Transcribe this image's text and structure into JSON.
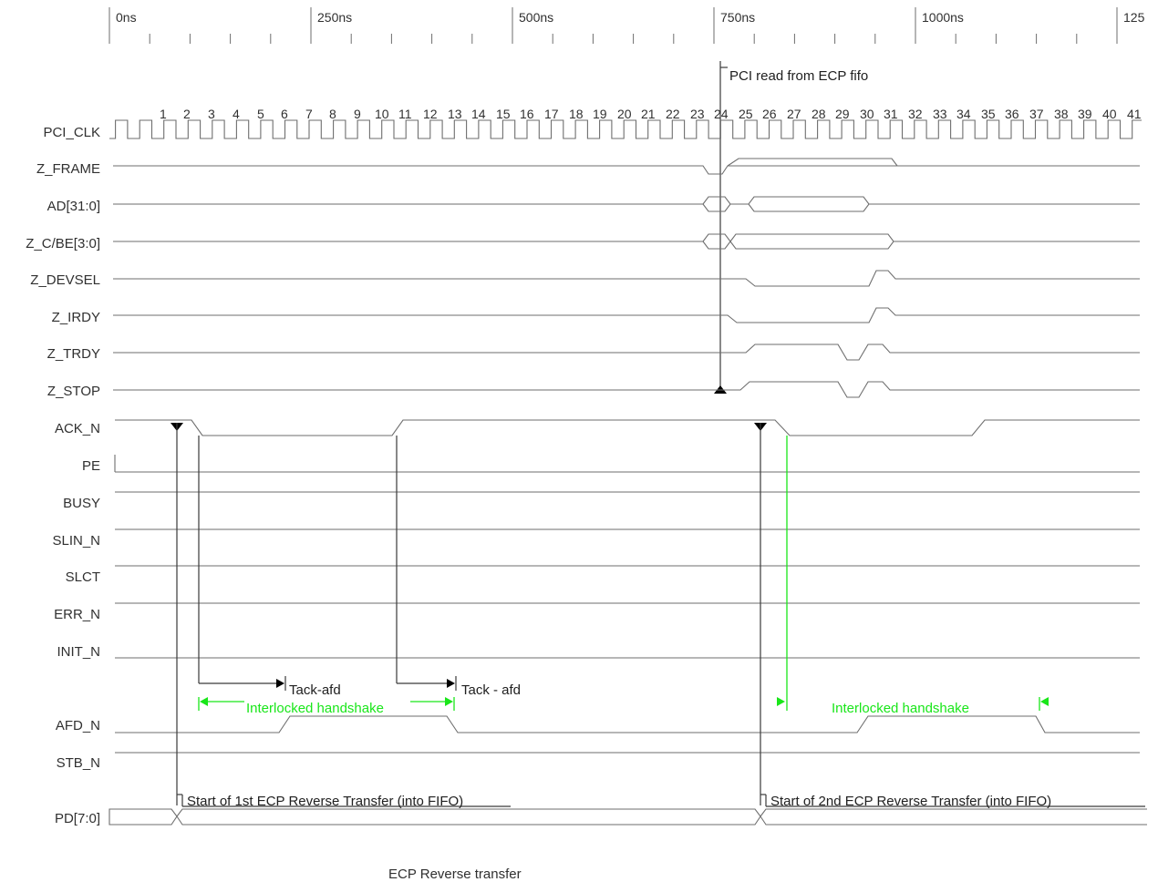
{
  "diagram": {
    "time_ruler": {
      "labels": [
        "0ns",
        "250ns",
        "500ns",
        "750ns",
        "1000ns",
        "125"
      ]
    },
    "clock_numbers": [
      "1",
      "2",
      "3",
      "4",
      "5",
      "6",
      "7",
      "8",
      "9",
      "10",
      "11",
      "12",
      "13",
      "14",
      "15",
      "16",
      "17",
      "18",
      "19",
      "20",
      "21",
      "22",
      "23",
      "24",
      "25",
      "26",
      "27",
      "28",
      "29",
      "30",
      "31",
      "32",
      "33",
      "34",
      "35",
      "36",
      "37",
      "38",
      "39",
      "40",
      "41"
    ],
    "signals": [
      "PCI_CLK",
      "Z_FRAME",
      "AD[31:0]",
      "Z_C/BE[3:0]",
      "Z_DEVSEL",
      "Z_IRDY",
      "Z_TRDY",
      "Z_STOP",
      "ACK_N",
      "PE",
      "BUSY",
      "SLIN_N",
      "SLCT",
      "ERR_N",
      "INIT_N",
      "AFD_N",
      "STB_N",
      "PD[7:0]"
    ],
    "annotations": {
      "pci_read": "PCI read from ECP fifo",
      "tack_afd_1": "Tack-afd",
      "tack_afd_2": "Tack - afd",
      "handshake_1": "Interlocked handshake",
      "handshake_2": "Interlocked handshake",
      "start_1": "Start of 1st ECP Reverse Transfer (into FIFO)",
      "start_2": "Start of 2nd ECP Reverse Transfer (into FIFO)"
    },
    "caption": "ECP Reverse transfer",
    "colors": {
      "waveform": "#6e6e6e",
      "marker": "#3a3a3a",
      "handshake": "#19e619"
    }
  }
}
